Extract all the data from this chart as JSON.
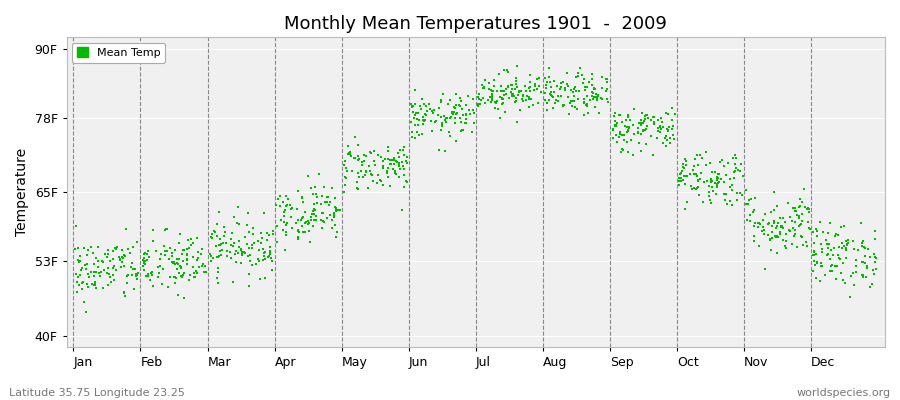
{
  "title": "Monthly Mean Temperatures 1901  -  2009",
  "ylabel": "Temperature",
  "yticks": [
    40,
    53,
    65,
    78,
    90
  ],
  "ytick_labels": [
    "40F",
    "53F",
    "65F",
    "78F",
    "90F"
  ],
  "ylim": [
    38,
    92
  ],
  "dot_color": "#00BB00",
  "dot_size": 2.5,
  "background_color": "#F0F0F0",
  "figure_background": "#FFFFFF",
  "legend_label": "Mean Temp",
  "bottom_left_text": "Latitude 35.75 Longitude 23.25",
  "bottom_right_text": "worldspecies.org",
  "monthly_means_F": [
    51.5,
    52.5,
    55.5,
    61.5,
    69.5,
    78.0,
    82.5,
    82.0,
    76.0,
    67.5,
    59.5,
    54.0
  ],
  "monthly_std_F": [
    2.8,
    2.8,
    2.5,
    2.5,
    2.2,
    2.0,
    1.8,
    1.8,
    2.0,
    2.5,
    2.8,
    2.8
  ],
  "n_years": 109,
  "months": [
    "Jan",
    "Feb",
    "Mar",
    "Apr",
    "May",
    "Jun",
    "Jul",
    "Aug",
    "Sep",
    "Oct",
    "Nov",
    "Dec"
  ]
}
